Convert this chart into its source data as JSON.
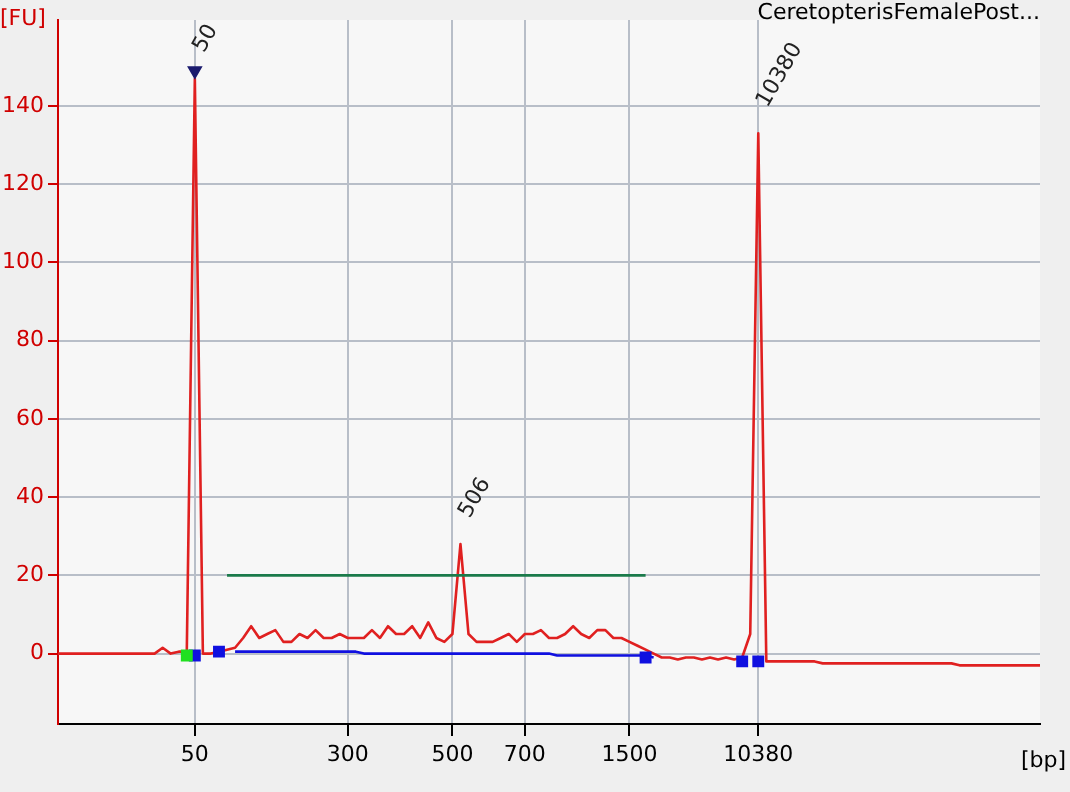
{
  "chart_data": {
    "type": "line",
    "title": "CeretopterisFemalePost...",
    "xlabel": "[bp]",
    "ylabel": "[FU]",
    "categories": [
      null,
      null,
      null,
      null,
      null,
      null,
      null,
      null,
      null,
      null,
      null,
      null,
      null,
      null,
      null,
      null,
      null,
      "50",
      null,
      null,
      null,
      null,
      null,
      null,
      null,
      null,
      null,
      null,
      null,
      null,
      null,
      null,
      null,
      null,
      null,
      null,
      "300",
      null,
      null,
      null,
      null,
      null,
      null,
      null,
      null,
      null,
      null,
      null,
      null,
      "500",
      null,
      null,
      null,
      null,
      null,
      null,
      null,
      null,
      "700",
      null,
      null,
      null,
      null,
      null,
      null,
      null,
      null,
      null,
      null,
      null,
      null,
      "1500",
      null,
      null,
      null,
      null,
      null,
      null,
      null,
      null,
      null,
      null,
      null,
      null,
      null,
      null,
      null,
      "10380",
      null,
      null,
      null,
      null,
      null,
      null,
      null,
      null,
      null,
      null,
      null,
      null,
      null,
      null,
      null,
      null,
      null,
      null,
      null,
      null,
      null,
      null,
      null,
      null,
      null,
      null,
      null,
      null,
      null,
      null,
      null,
      null,
      null,
      null,
      null
    ],
    "series": [
      {
        "type": "line",
        "color": "#e02020",
        "marker": "none",
        "values": [
          0,
          0,
          0,
          0,
          0,
          0,
          0,
          0,
          0,
          0,
          0,
          0,
          0,
          1.5,
          0,
          0.5,
          0.5,
          147,
          0,
          0,
          0.5,
          1,
          1.5,
          4,
          7,
          4,
          5,
          6,
          3,
          3,
          5,
          4,
          6,
          4,
          4,
          5,
          4,
          4,
          4,
          6,
          4,
          7,
          5,
          5,
          7,
          4,
          8,
          4,
          3,
          5,
          28,
          5,
          3,
          3,
          3,
          4,
          5,
          3,
          5,
          5,
          6,
          4,
          4,
          5,
          7,
          5,
          4,
          6,
          6,
          4,
          4,
          3,
          2,
          1,
          0,
          -1,
          -1,
          -1.5,
          -1,
          -1,
          -1.5,
          -1,
          -1.5,
          -1,
          -1.5,
          -1,
          5,
          133,
          -2,
          -2,
          -2,
          -2,
          -2,
          -2,
          -2,
          -2.5,
          -2.5,
          -2.5,
          -2.5,
          -2.5,
          -2.5,
          -2.5,
          -2.5,
          -2.5,
          -2.5,
          -2.5,
          -2.5,
          -2.5,
          -2.5,
          -2.5,
          -2.5,
          -2.5,
          -3,
          -3,
          -3,
          -3,
          -3,
          -3,
          -3,
          -3,
          -3,
          -3,
          -3
        ]
      },
      {
        "type": "line",
        "color": "#1010e0",
        "marker": "none",
        "values": [
          null,
          null,
          null,
          null,
          null,
          null,
          null,
          null,
          null,
          null,
          null,
          null,
          null,
          null,
          null,
          null,
          null,
          null,
          null,
          null,
          null,
          null,
          0.5,
          0.5,
          0.5,
          0.5,
          0.5,
          0.5,
          0.5,
          0.5,
          0.5,
          0.5,
          0.5,
          0.5,
          0.5,
          0.5,
          0.5,
          0.5,
          0,
          0,
          0,
          0,
          0,
          0,
          0,
          0,
          0,
          0,
          0,
          0,
          0,
          0,
          0,
          0,
          0,
          0,
          0,
          0,
          0,
          0,
          0,
          0,
          -0.5,
          -0.5,
          -0.5,
          -0.5,
          -0.5,
          -0.5,
          -0.5,
          -0.5,
          -0.5,
          -0.5,
          -0.5,
          -0.5,
          -1,
          null,
          null,
          null,
          null,
          null,
          null,
          null,
          null,
          null,
          null,
          null,
          null,
          null,
          null,
          null,
          null,
          null,
          null,
          null,
          null,
          null,
          null,
          null,
          null,
          null,
          null,
          null,
          null,
          null,
          null,
          null,
          null,
          null,
          null,
          null,
          null,
          null,
          null,
          null,
          null,
          null,
          null,
          null,
          null,
          null,
          null,
          null,
          null
        ]
      },
      {
        "type": "line",
        "color": "#1a7a4a",
        "marker": "none",
        "values": [
          null,
          null,
          null,
          null,
          null,
          null,
          null,
          null,
          null,
          null,
          null,
          null,
          null,
          null,
          null,
          null,
          null,
          null,
          null,
          null,
          null,
          20,
          20,
          20,
          20,
          20,
          20,
          20,
          20,
          20,
          20,
          20,
          20,
          20,
          20,
          20,
          20,
          20,
          20,
          20,
          20,
          20,
          20,
          20,
          20,
          20,
          20,
          20,
          20,
          20,
          20,
          20,
          20,
          20,
          20,
          20,
          20,
          20,
          20,
          20,
          20,
          20,
          20,
          20,
          20,
          20,
          20,
          20,
          20,
          20,
          20,
          20,
          20,
          20,
          null,
          null,
          null,
          null,
          null,
          null,
          null,
          null,
          null,
          null,
          null,
          null,
          null,
          null,
          null,
          null,
          null,
          null,
          null,
          null,
          null,
          null,
          null,
          null,
          null,
          null,
          null,
          null,
          null,
          null,
          null,
          null,
          null,
          null,
          null,
          null,
          null,
          null,
          null,
          null,
          null,
          null,
          null,
          null,
          null,
          null,
          null,
          null,
          null
        ]
      },
      {
        "type": "scatter",
        "color": "#1010e0",
        "marker": "square",
        "values": [
          null,
          null,
          null,
          null,
          null,
          null,
          null,
          null,
          null,
          null,
          null,
          null,
          null,
          null,
          null,
          null,
          null,
          -0.5,
          null,
          null,
          0.5,
          null,
          null,
          null,
          null,
          null,
          null,
          null,
          null,
          null,
          null,
          null,
          null,
          null,
          null,
          null,
          null,
          null,
          null,
          null,
          null,
          null,
          null,
          null,
          null,
          null,
          null,
          null,
          null,
          null,
          null,
          null,
          null,
          null,
          null,
          null,
          null,
          null,
          null,
          null,
          null,
          null,
          null,
          null,
          null,
          null,
          null,
          null,
          null,
          null,
          null,
          null,
          null,
          -1,
          null,
          null,
          null,
          null,
          null,
          null,
          null,
          null,
          null,
          null,
          null,
          -2,
          null,
          -2,
          null,
          null,
          null,
          null,
          null,
          null,
          null,
          null,
          null,
          null,
          null,
          null,
          null,
          null,
          null,
          null,
          null,
          null,
          null,
          null,
          null,
          null,
          null,
          null,
          null,
          null,
          null,
          null,
          null,
          null,
          null,
          null,
          null,
          null,
          null
        ]
      },
      {
        "type": "scatter",
        "color": "#20e020",
        "marker": "square",
        "values": [
          null,
          null,
          null,
          null,
          null,
          null,
          null,
          null,
          null,
          null,
          null,
          null,
          null,
          null,
          null,
          null,
          -0.5,
          null,
          null,
          null,
          null,
          null,
          null,
          null,
          null,
          null,
          null,
          null,
          null,
          null,
          null,
          null,
          null,
          null,
          null,
          null,
          null,
          null,
          null,
          null,
          null,
          null,
          null,
          null,
          null,
          null,
          null,
          null,
          null,
          null,
          null,
          null,
          null,
          null,
          null,
          null,
          null,
          null,
          null,
          null,
          null,
          null,
          null,
          null,
          null,
          null,
          null,
          null,
          null,
          null,
          null,
          null,
          null,
          null,
          null,
          null,
          null,
          null,
          null,
          null,
          null,
          null,
          null,
          null,
          null,
          null,
          null,
          null,
          null,
          null,
          null,
          null,
          null,
          null,
          null,
          null,
          null,
          null,
          null,
          null,
          null,
          null,
          null,
          null,
          null,
          null,
          null,
          null,
          null,
          null,
          null,
          null,
          null,
          null,
          null,
          null,
          null,
          null,
          null,
          null,
          null,
          null,
          null
        ]
      },
      {
        "type": "scatter",
        "color": "#1a1a6e",
        "marker": "triangle",
        "values": [
          null,
          null,
          null,
          null,
          null,
          null,
          null,
          null,
          null,
          null,
          null,
          null,
          null,
          null,
          null,
          null,
          null,
          149,
          null,
          null,
          null,
          null,
          null,
          null,
          null,
          null,
          null,
          null,
          null,
          null,
          null,
          null,
          null,
          null,
          null,
          null,
          null,
          null,
          null,
          null,
          null,
          null,
          null,
          null,
          null,
          null,
          null,
          null,
          null,
          null,
          null,
          null,
          null,
          null,
          null,
          null,
          null,
          null,
          null,
          null,
          null,
          null,
          null,
          null,
          null,
          null,
          null,
          null,
          null,
          null,
          null,
          null,
          null,
          null,
          null,
          null,
          null,
          null,
          null,
          null,
          null,
          null,
          null,
          null,
          null,
          null,
          null,
          null,
          null,
          null,
          null,
          null,
          null,
          null,
          null,
          null,
          null,
          null,
          null,
          null,
          null,
          null,
          null,
          null,
          null,
          null,
          null,
          null,
          null,
          null,
          null,
          null,
          null,
          null,
          null,
          null,
          null,
          null,
          null,
          null,
          null,
          null,
          null
        ]
      }
    ],
    "annotations": [
      {
        "text": "50",
        "x": "50",
        "y": 147
      },
      "506",
      {
        "text": "10380",
        "x": "10380",
        "y": 133
      }
    ],
    "ylim": [
      -18,
      162
    ],
    "yticks": [
      0,
      20,
      40,
      60,
      80,
      100,
      120,
      140
    ],
    "grid": true,
    "legend": false
  }
}
